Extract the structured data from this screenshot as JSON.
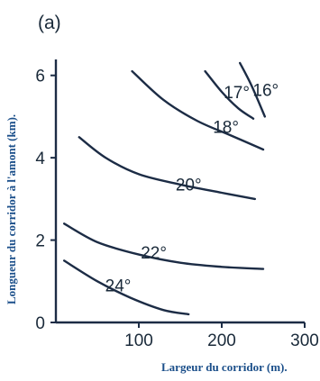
{
  "chart_data": {
    "type": "line",
    "title": "",
    "panel_label": "(a)",
    "xlabel": "Largeur du corridor (m).",
    "ylabel": "Longueur du corridor à l'amont (km).",
    "xlim": [
      0,
      300
    ],
    "ylim": [
      0,
      6.3
    ],
    "xticks": [
      100,
      200,
      300
    ],
    "yticks": [
      0,
      2,
      4,
      6
    ],
    "grid": false,
    "colors": {
      "curve": "#1c2c45",
      "axis": "#1c2c45",
      "title": "#1b4f8a"
    },
    "series": [
      {
        "label": "16°",
        "label_pos": [
          253,
          5.5
        ],
        "points": [
          [
            222,
            6.3
          ],
          [
            236,
            5.75
          ],
          [
            252,
            5.0
          ]
        ]
      },
      {
        "label": "17°",
        "label_pos": [
          218,
          5.45
        ],
        "points": [
          [
            180,
            6.1
          ],
          [
            200,
            5.6
          ],
          [
            220,
            5.2
          ],
          [
            238,
            4.95
          ]
        ]
      },
      {
        "label": "18°",
        "label_pos": [
          205,
          4.6
        ],
        "points": [
          [
            92,
            6.1
          ],
          [
            130,
            5.4
          ],
          [
            170,
            4.9
          ],
          [
            210,
            4.55
          ],
          [
            250,
            4.2
          ]
        ]
      },
      {
        "label": "20°",
        "label_pos": [
          160,
          3.2
        ],
        "points": [
          [
            28,
            4.5
          ],
          [
            60,
            4.0
          ],
          [
            100,
            3.6
          ],
          [
            150,
            3.35
          ],
          [
            200,
            3.15
          ],
          [
            240,
            3.0
          ]
        ]
      },
      {
        "label": "22°",
        "label_pos": [
          118,
          1.55
        ],
        "points": [
          [
            10,
            2.4
          ],
          [
            50,
            1.95
          ],
          [
            100,
            1.65
          ],
          [
            150,
            1.45
          ],
          [
            200,
            1.35
          ],
          [
            250,
            1.3
          ]
        ]
      },
      {
        "label": "24°",
        "label_pos": [
          75,
          0.75
        ],
        "points": [
          [
            10,
            1.5
          ],
          [
            50,
            1.0
          ],
          [
            90,
            0.6
          ],
          [
            130,
            0.3
          ],
          [
            160,
            0.2
          ]
        ]
      }
    ]
  }
}
